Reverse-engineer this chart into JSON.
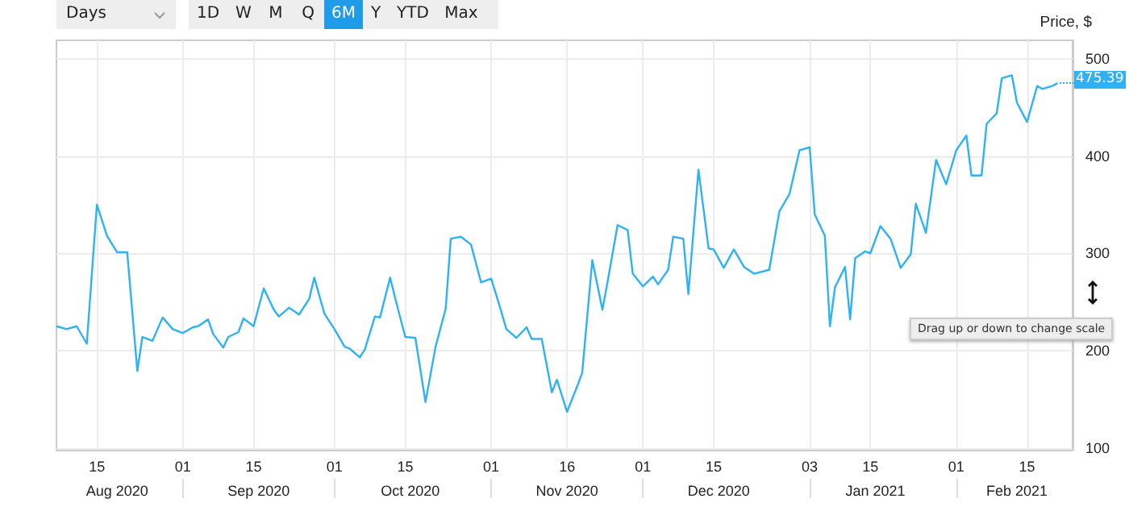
{
  "chart_data": {
    "type": "line",
    "ylabel": "Price, $",
    "annotations": [
      "Days",
      "1D",
      "W",
      "M",
      "Q",
      "6M",
      "Y",
      "YTD",
      "Max",
      "Drag up or down to change scale",
      {
        "text": "475.39",
        "x": "2021-02-21",
        "y": 475.39
      }
    ],
    "x": [
      "2020-08-07",
      "2020-08-09",
      "2020-08-11",
      "2020-08-13",
      "2020-08-15",
      "2020-08-17",
      "2020-08-19",
      "2020-08-21",
      "2020-08-23",
      "2020-08-24",
      "2020-08-26",
      "2020-08-28",
      "2020-08-30",
      "2020-09-01",
      "2020-09-03",
      "2020-09-04",
      "2020-09-06",
      "2020-09-07",
      "2020-09-09",
      "2020-09-10",
      "2020-09-12",
      "2020-09-13",
      "2020-09-15",
      "2020-09-17",
      "2020-09-19",
      "2020-09-20",
      "2020-09-22",
      "2020-09-24",
      "2020-09-26",
      "2020-09-27",
      "2020-09-29",
      "2020-10-01",
      "2020-10-03",
      "2020-10-04",
      "2020-10-06",
      "2020-10-07",
      "2020-10-09",
      "2020-10-10",
      "2020-10-12",
      "2020-10-13",
      "2020-10-15",
      "2020-10-17",
      "2020-10-19",
      "2020-10-21",
      "2020-10-23",
      "2020-10-24",
      "2020-10-26",
      "2020-10-28",
      "2020-10-30",
      "2020-11-01",
      "2020-11-03",
      "2020-11-04",
      "2020-11-06",
      "2020-11-08",
      "2020-11-09",
      "2020-11-11",
      "2020-11-13",
      "2020-11-14",
      "2020-11-16",
      "2020-11-18",
      "2020-11-19",
      "2020-11-21",
      "2020-11-23",
      "2020-11-24",
      "2020-11-26",
      "2020-11-28",
      "2020-11-29",
      "2020-12-01",
      "2020-12-03",
      "2020-12-04",
      "2020-12-06",
      "2020-12-07",
      "2020-12-09",
      "2020-12-10",
      "2020-12-12",
      "2020-12-14",
      "2020-12-15",
      "2020-12-17",
      "2020-12-19",
      "2020-12-21",
      "2020-12-23",
      "2020-12-26",
      "2020-12-28",
      "2020-12-30",
      "2021-01-01",
      "2021-01-03",
      "2021-01-04",
      "2021-01-06",
      "2021-01-07",
      "2021-01-08",
      "2021-01-10",
      "2021-01-11",
      "2021-01-12",
      "2021-01-14",
      "2021-01-15",
      "2021-01-17",
      "2021-01-19",
      "2021-01-21",
      "2021-01-23",
      "2021-01-24",
      "2021-01-26",
      "2021-01-28",
      "2021-01-30",
      "2021-02-01",
      "2021-02-03",
      "2021-02-04",
      "2021-02-06",
      "2021-02-07",
      "2021-02-09",
      "2021-02-10",
      "2021-02-12",
      "2021-02-13",
      "2021-02-15",
      "2021-02-17",
      "2021-02-18",
      "2021-02-20",
      "2021-02-21"
    ],
    "series": [
      {
        "color": "#2eb2f5",
        "values": [
          225,
          222,
          225,
          207,
          350,
          318,
          301,
          301,
          179,
          214,
          210,
          234,
          222,
          218,
          224,
          225,
          232,
          217,
          203,
          214,
          219,
          233,
          225,
          264,
          242,
          235,
          244,
          237,
          253,
          275,
          238,
          222,
          204,
          202,
          193,
          201,
          235,
          234,
          275,
          254,
          214,
          213,
          147,
          204,
          243,
          315,
          317,
          309,
          270,
          274,
          240,
          222,
          213,
          224,
          212,
          212,
          157,
          170,
          137,
          163,
          177,
          293,
          242,
          270,
          329,
          324,
          279,
          266,
          276,
          268,
          283,
          317,
          315,
          258,
          386,
          305,
          304,
          285,
          304,
          286,
          279,
          283,
          343,
          361,
          406,
          409,
          340,
          318,
          225,
          265,
          286,
          232,
          295,
          302,
          300,
          328,
          315,
          285,
          299,
          351,
          321,
          396,
          371,
          406,
          421,
          380,
          380,
          433,
          444,
          480,
          483,
          455,
          435,
          472,
          469,
          472,
          475
        ]
      }
    ],
    "xlim": [
      "2020-08-07",
      "2021-02-24"
    ],
    "xticks": [
      {
        "value": "2020-08-15",
        "label": "15"
      },
      {
        "value": "2020-09-01",
        "label": "01"
      },
      {
        "value": "2020-09-15",
        "label": "15"
      },
      {
        "value": "2020-10-01",
        "label": "01"
      },
      {
        "value": "2020-10-15",
        "label": "15"
      },
      {
        "value": "2020-11-01",
        "label": "01"
      },
      {
        "value": "2020-11-16",
        "label": "16"
      },
      {
        "value": "2020-12-01",
        "label": "01"
      },
      {
        "value": "2020-12-15",
        "label": "15"
      },
      {
        "value": "2021-01-03",
        "label": "03"
      },
      {
        "value": "2021-01-15",
        "label": "15"
      },
      {
        "value": "2021-02-01",
        "label": "01"
      },
      {
        "value": "2021-02-15",
        "label": "15"
      }
    ],
    "x2ticks": [
      {
        "value": "2020-08-19",
        "label": "Aug 2020"
      },
      {
        "value": "2020-09-01",
        "label": null
      },
      {
        "value": "2020-09-16",
        "label": "Sep 2020"
      },
      {
        "value": "2020-10-01",
        "label": null
      },
      {
        "value": "2020-10-16",
        "label": "Oct 2020"
      },
      {
        "value": "2020-11-01",
        "label": null
      },
      {
        "value": "2020-11-16",
        "label": "Nov 2020"
      },
      {
        "value": "2020-12-01",
        "label": null
      },
      {
        "value": "2020-12-16",
        "label": "Dec 2020"
      },
      {
        "value": "2021-01-03",
        "label": null
      },
      {
        "value": "2021-01-16",
        "label": "Jan 2021"
      },
      {
        "value": "2021-02-01",
        "label": null
      },
      {
        "value": "2021-02-13",
        "label": "Feb 2021"
      }
    ],
    "ylim": [
      98,
      519
    ],
    "yticks": [
      100,
      200,
      300,
      400,
      500
    ],
    "x2lim": [
      "2020-08-07",
      "2021-02-24"
    ],
    "grid": true,
    "marker": "none",
    "line_style": "solid"
  }
}
